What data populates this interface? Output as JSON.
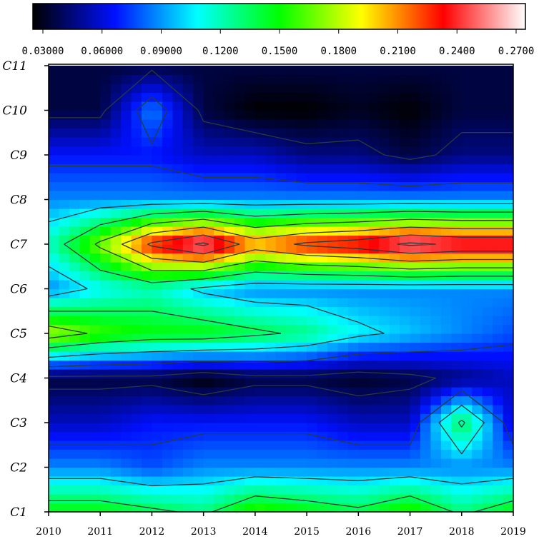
{
  "chart_data": {
    "type": "heatmap",
    "title": "",
    "xlabel": "",
    "ylabel": "",
    "x_ticks": [
      "2010",
      "2011",
      "2012",
      "2013",
      "2014",
      "2015",
      "2016",
      "2017",
      "2018",
      "2019"
    ],
    "y_ticks": [
      "C1",
      "C2",
      "C3",
      "C4",
      "C5",
      "C6",
      "C7",
      "C8",
      "C9",
      "C10",
      "C11"
    ],
    "colorbar": {
      "position": "top",
      "ticks": [
        "0.03000",
        "0.06000",
        "0.09000",
        "0.1200",
        "0.1500",
        "0.1800",
        "0.2100",
        "0.2400",
        "0.2700"
      ],
      "range": [
        0.03,
        0.27
      ],
      "colors": [
        "#000000",
        "#0010ff",
        "#00ffff",
        "#00ff00",
        "#ffff00",
        "#ff0000",
        "#ffffff"
      ]
    },
    "rows": [
      {
        "category": "C1",
        "values": [
          0.15,
          0.15,
          0.14,
          0.13,
          0.16,
          0.15,
          0.14,
          0.16,
          0.13,
          0.15
        ]
      },
      {
        "category": "C2",
        "values": [
          0.09,
          0.09,
          0.08,
          0.09,
          0.09,
          0.09,
          0.09,
          0.09,
          0.09,
          0.09
        ]
      },
      {
        "category": "C3",
        "values": [
          0.06,
          0.06,
          0.07,
          0.07,
          0.07,
          0.07,
          0.06,
          0.06,
          0.14,
          0.06
        ]
      },
      {
        "category": "C4",
        "values": [
          0.04,
          0.04,
          0.04,
          0.03,
          0.04,
          0.04,
          0.035,
          0.04,
          0.05,
          0.06
        ]
      },
      {
        "category": "C5",
        "values": [
          0.18,
          0.16,
          0.15,
          0.15,
          0.14,
          0.13,
          0.11,
          0.1,
          0.09,
          0.08
        ]
      },
      {
        "category": "C6",
        "values": [
          0.09,
          0.11,
          0.12,
          0.1,
          0.09,
          0.09,
          0.09,
          0.09,
          0.09,
          0.09
        ]
      },
      {
        "category": "C7",
        "values": [
          0.12,
          0.17,
          0.23,
          0.26,
          0.21,
          0.23,
          0.24,
          0.26,
          0.25,
          0.25
        ]
      },
      {
        "category": "C8",
        "values": [
          0.09,
          0.09,
          0.09,
          0.09,
          0.09,
          0.09,
          0.09,
          0.09,
          0.09,
          0.09
        ]
      },
      {
        "category": "C9",
        "values": [
          0.07,
          0.07,
          0.07,
          0.06,
          0.06,
          0.05,
          0.05,
          0.04,
          0.05,
          0.05
        ]
      },
      {
        "category": "C10",
        "values": [
          0.04,
          0.04,
          0.09,
          0.04,
          0.03,
          0.03,
          0.035,
          0.03,
          0.04,
          0.04
        ]
      },
      {
        "category": "C11",
        "values": [
          0.04,
          0.04,
          0.04,
          0.04,
          0.04,
          0.04,
          0.04,
          0.04,
          0.04,
          0.04
        ]
      }
    ]
  }
}
